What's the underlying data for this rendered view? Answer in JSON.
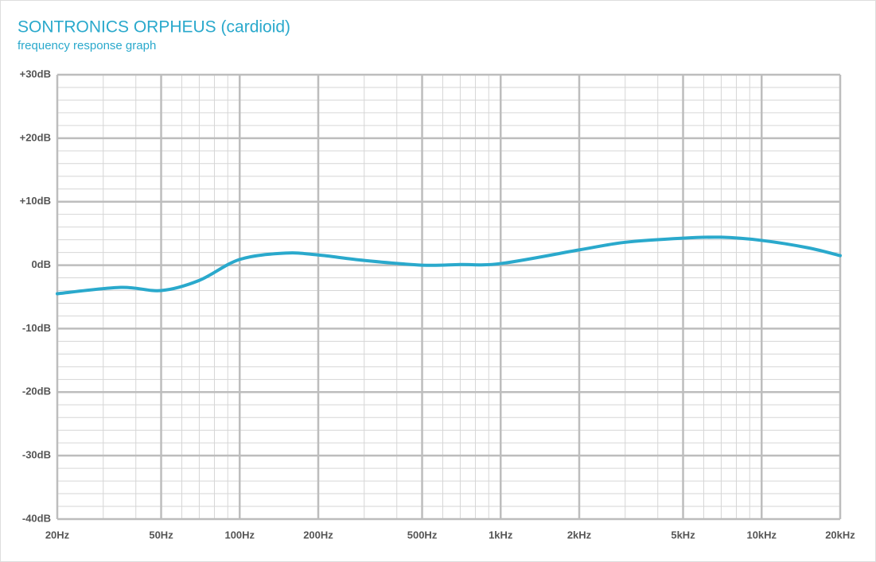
{
  "chart_data": {
    "type": "line",
    "title": "SONTRONICS ORPHEUS (cardioid)",
    "subtitle": "frequency response graph",
    "x": [
      20,
      35,
      50,
      70,
      100,
      150,
      200,
      300,
      500,
      700,
      1000,
      2000,
      3000,
      5000,
      7000,
      10000,
      15000,
      20000
    ],
    "series": [
      {
        "name": "cardioid",
        "color": "#2aa9cc",
        "values": [
          -4.5,
          -3.5,
          -4.0,
          -2.4,
          0.9,
          1.9,
          1.6,
          0.75,
          0,
          0.1,
          0.25,
          2.4,
          3.6,
          4.25,
          4.4,
          3.9,
          2.75,
          1.5
        ]
      }
    ],
    "xlim": [
      20,
      20000
    ],
    "xscale": "log",
    "xticks": [
      {
        "value": 20,
        "label": "20Hz"
      },
      {
        "value": 50,
        "label": "50Hz"
      },
      {
        "value": 100,
        "label": "100Hz"
      },
      {
        "value": 200,
        "label": "200Hz"
      },
      {
        "value": 500,
        "label": "500Hz"
      },
      {
        "value": 1000,
        "label": "1kHz"
      },
      {
        "value": 2000,
        "label": "2kHz"
      },
      {
        "value": 5000,
        "label": "5kHz"
      },
      {
        "value": 10000,
        "label": "10kHz"
      },
      {
        "value": 20000,
        "label": "20kHz"
      }
    ],
    "x_minor_ticks": [
      30,
      40,
      60,
      70,
      80,
      90,
      300,
      400,
      600,
      700,
      800,
      900,
      3000,
      4000,
      6000,
      7000,
      8000,
      9000
    ],
    "ylim": [
      -40,
      30
    ],
    "yticks": [
      {
        "value": -40,
        "label": "-40dB"
      },
      {
        "value": -30,
        "label": "-30dB"
      },
      {
        "value": -20,
        "label": "-20dB"
      },
      {
        "value": -10,
        "label": "-10dB"
      },
      {
        "value": 0,
        "label": "0dB"
      },
      {
        "value": 10,
        "label": "+10dB"
      },
      {
        "value": 20,
        "label": "+20dB"
      },
      {
        "value": 30,
        "label": "+30dB"
      }
    ],
    "y_minor_ticks": [
      -38,
      -36,
      -34,
      -32,
      -28,
      -26,
      -24,
      -22,
      -18,
      -16,
      -14,
      -12,
      -8,
      -6,
      -4,
      -2,
      2,
      4,
      6,
      8,
      12,
      14,
      16,
      18,
      22,
      24,
      26,
      28
    ],
    "grid": true
  }
}
